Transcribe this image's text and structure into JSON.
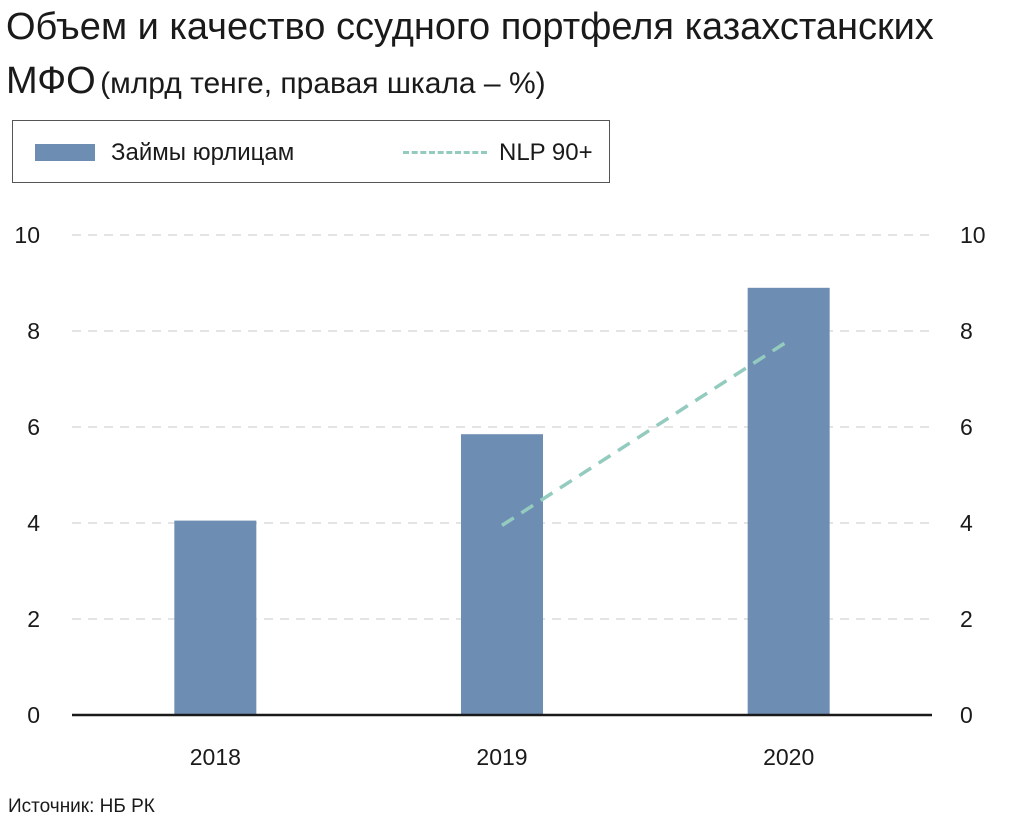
{
  "colors": {
    "bar": "#6e8db3",
    "line": "#94cbbf",
    "grid": "#c8c8c8",
    "axis": "#1a1a1a"
  },
  "chart_data": {
    "type": "bar",
    "title": "Объем и качество ссудного портфеля казахстанских МФО",
    "subtitle": "(млрд тенге, правая шкала – %)",
    "categories": [
      "2018",
      "2019",
      "2020"
    ],
    "series": [
      {
        "name": "Займы юрлицам",
        "type": "bar",
        "axis": "left",
        "values": [
          4.05,
          5.85,
          8.9
        ]
      },
      {
        "name": "NLP 90+",
        "type": "line",
        "style": "dashed",
        "axis": "right",
        "values": [
          null,
          3.95,
          7.8
        ]
      }
    ],
    "ylim": [
      0,
      10
    ],
    "y2lim": [
      0,
      10
    ],
    "yticks": [
      0,
      2,
      4,
      6,
      8,
      10
    ],
    "grid": true,
    "legend": "top-left"
  },
  "source": "Источник: НБ РК"
}
